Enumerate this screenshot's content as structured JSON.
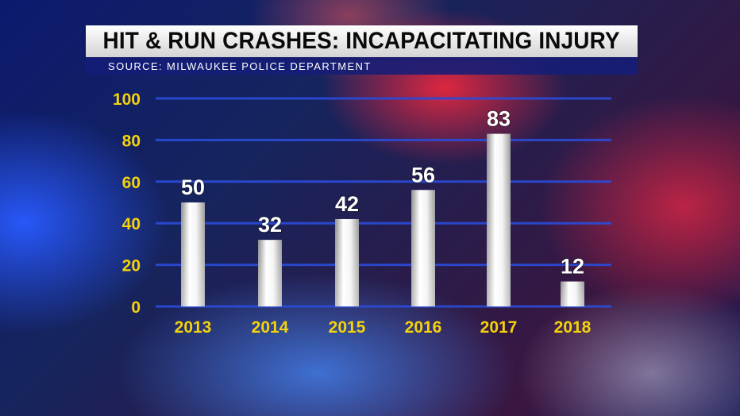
{
  "header": {
    "title": "HIT & RUN CRASHES: INCAPACITATING INJURY",
    "source": "SOURCE: MILWAUKEE POLICE DEPARTMENT"
  },
  "colors": {
    "tick_labels": "#f5d30a",
    "data_labels": "#ffffff",
    "gridlines": "#2a4bd8"
  },
  "chart_data": {
    "type": "bar",
    "categories": [
      "2013",
      "2014",
      "2015",
      "2016",
      "2017",
      "2018"
    ],
    "values": [
      50,
      32,
      42,
      56,
      83,
      12
    ],
    "data_labels": [
      "50",
      "32",
      "42",
      "56",
      "83",
      "12"
    ],
    "y_ticks": [
      "0",
      "20",
      "40",
      "60",
      "80",
      "100"
    ],
    "ylim": [
      0,
      100
    ],
    "grid": true,
    "legend": "none"
  }
}
